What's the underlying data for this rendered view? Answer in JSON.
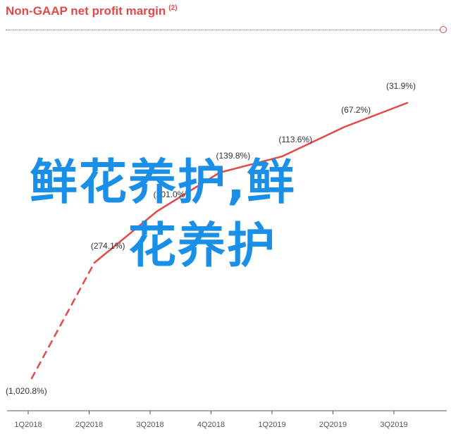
{
  "title": "Non-GAAP net profit margin",
  "title_note": "(2)",
  "overlay": {
    "line1": "鲜花养护,鲜",
    "line2": "花养护"
  },
  "colors": {
    "line": "#e24a4a",
    "overlay_text": "#1a8fe8",
    "axis": "#555555"
  },
  "chart_data": {
    "type": "line",
    "categories": [
      "1Q2018",
      "2Q2018",
      "3Q2018",
      "4Q2018",
      "1Q2019",
      "2Q2019",
      "3Q2019"
    ],
    "series": [
      {
        "values": [
          -1020.8,
          -274.1,
          -201.0,
          -139.8,
          -113.6,
          -67.2,
          -31.9
        ],
        "labels": [
          "(1,020.8%)",
          "(274.1%)",
          "(201.0%)",
          "(139.8%)",
          "(113.6%)",
          "(67.2%)",
          "(31.9%)"
        ],
        "dashed_segments": [
          0
        ]
      }
    ],
    "title": "Non-GAAP net profit margin",
    "xlabel": "",
    "ylabel": "",
    "grid": false,
    "legend": "none"
  }
}
